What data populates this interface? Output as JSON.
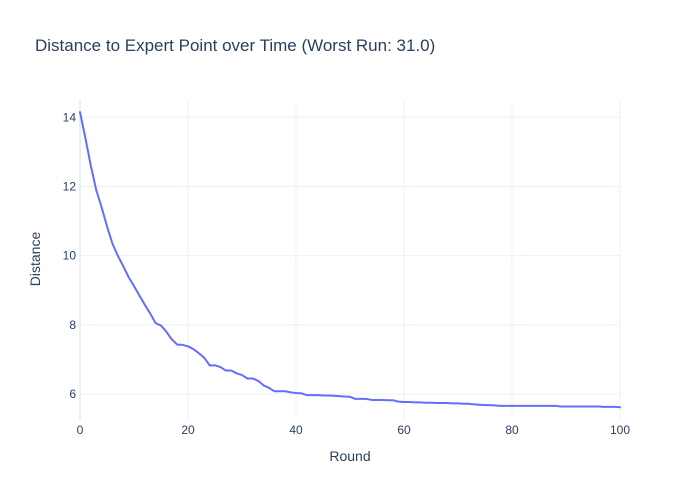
{
  "chart_data": {
    "type": "line",
    "title": "Distance to Expert Point over Time (Worst Run: 31.0)",
    "xlabel": "Round",
    "ylabel": "Distance",
    "xlim": [
      0,
      100
    ],
    "ylim": [
      5.25,
      14.5
    ],
    "x_ticks": [
      0,
      20,
      40,
      60,
      80,
      100
    ],
    "y_ticks": [
      6,
      8,
      10,
      12,
      14
    ],
    "grid": true,
    "legend": "none",
    "colors": {
      "series": "#636efa",
      "text": "#2a3f5f",
      "grid": "#ebf0f8"
    },
    "series": [
      {
        "x": [
          0,
          1,
          2,
          3,
          4,
          5,
          6,
          7,
          8,
          9,
          10,
          11,
          12,
          13,
          14,
          15,
          16,
          17,
          18,
          19,
          20,
          21,
          22,
          23,
          24,
          25,
          26,
          27,
          28,
          29,
          30,
          31,
          32,
          33,
          34,
          35,
          36,
          37,
          38,
          39,
          40,
          41,
          42,
          43,
          44,
          45,
          46,
          47,
          48,
          49,
          50,
          51,
          52,
          53,
          54,
          55,
          56,
          57,
          58,
          59,
          60,
          61,
          62,
          63,
          64,
          65,
          66,
          67,
          68,
          69,
          70,
          71,
          72,
          73,
          74,
          75,
          76,
          77,
          78,
          79,
          80,
          81,
          82,
          83,
          84,
          85,
          86,
          87,
          88,
          89,
          90,
          91,
          92,
          93,
          94,
          95,
          96,
          97,
          98,
          99,
          100
        ],
        "values": [
          14.15,
          13.4,
          12.6,
          11.9,
          11.4,
          10.85,
          10.35,
          10.0,
          9.7,
          9.38,
          9.12,
          8.85,
          8.58,
          8.33,
          8.05,
          7.98,
          7.8,
          7.58,
          7.43,
          7.42,
          7.38,
          7.3,
          7.18,
          7.05,
          6.83,
          6.83,
          6.78,
          6.68,
          6.68,
          6.6,
          6.55,
          6.45,
          6.45,
          6.38,
          6.25,
          6.18,
          6.08,
          6.08,
          6.08,
          6.05,
          6.03,
          6.02,
          5.97,
          5.97,
          5.97,
          5.96,
          5.96,
          5.95,
          5.94,
          5.93,
          5.92,
          5.86,
          5.86,
          5.86,
          5.83,
          5.83,
          5.83,
          5.82,
          5.82,
          5.78,
          5.77,
          5.77,
          5.76,
          5.76,
          5.75,
          5.75,
          5.74,
          5.74,
          5.74,
          5.73,
          5.73,
          5.72,
          5.72,
          5.7,
          5.69,
          5.68,
          5.68,
          5.67,
          5.66,
          5.66,
          5.66,
          5.66,
          5.66,
          5.66,
          5.66,
          5.66,
          5.66,
          5.66,
          5.66,
          5.64,
          5.64,
          5.64,
          5.64,
          5.64,
          5.64,
          5.64,
          5.64,
          5.63,
          5.63,
          5.63,
          5.62
        ]
      }
    ]
  }
}
